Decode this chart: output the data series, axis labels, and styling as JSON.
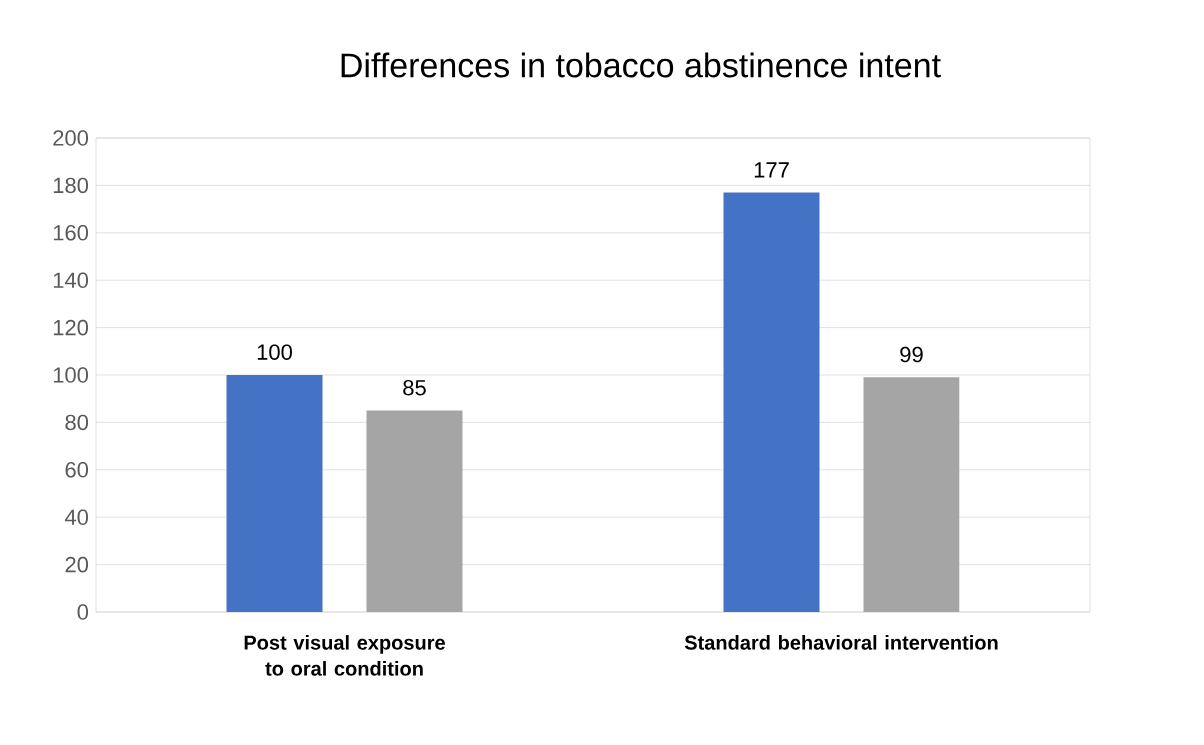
{
  "chart_data": {
    "type": "bar",
    "title": "Differences in tobacco abstinence intent",
    "categories": [
      "Post visual exposure to oral condition",
      "Standard behavioral intervention"
    ],
    "series": [
      {
        "color": "#4472c4",
        "values": [
          100,
          177
        ]
      },
      {
        "color": "#a5a5a5",
        "values": [
          85,
          99
        ]
      }
    ],
    "ylim": [
      0,
      200
    ],
    "yticks": [
      0,
      20,
      40,
      60,
      80,
      100,
      120,
      140,
      160,
      180,
      200
    ],
    "grid": "y",
    "data_labels": true
  }
}
